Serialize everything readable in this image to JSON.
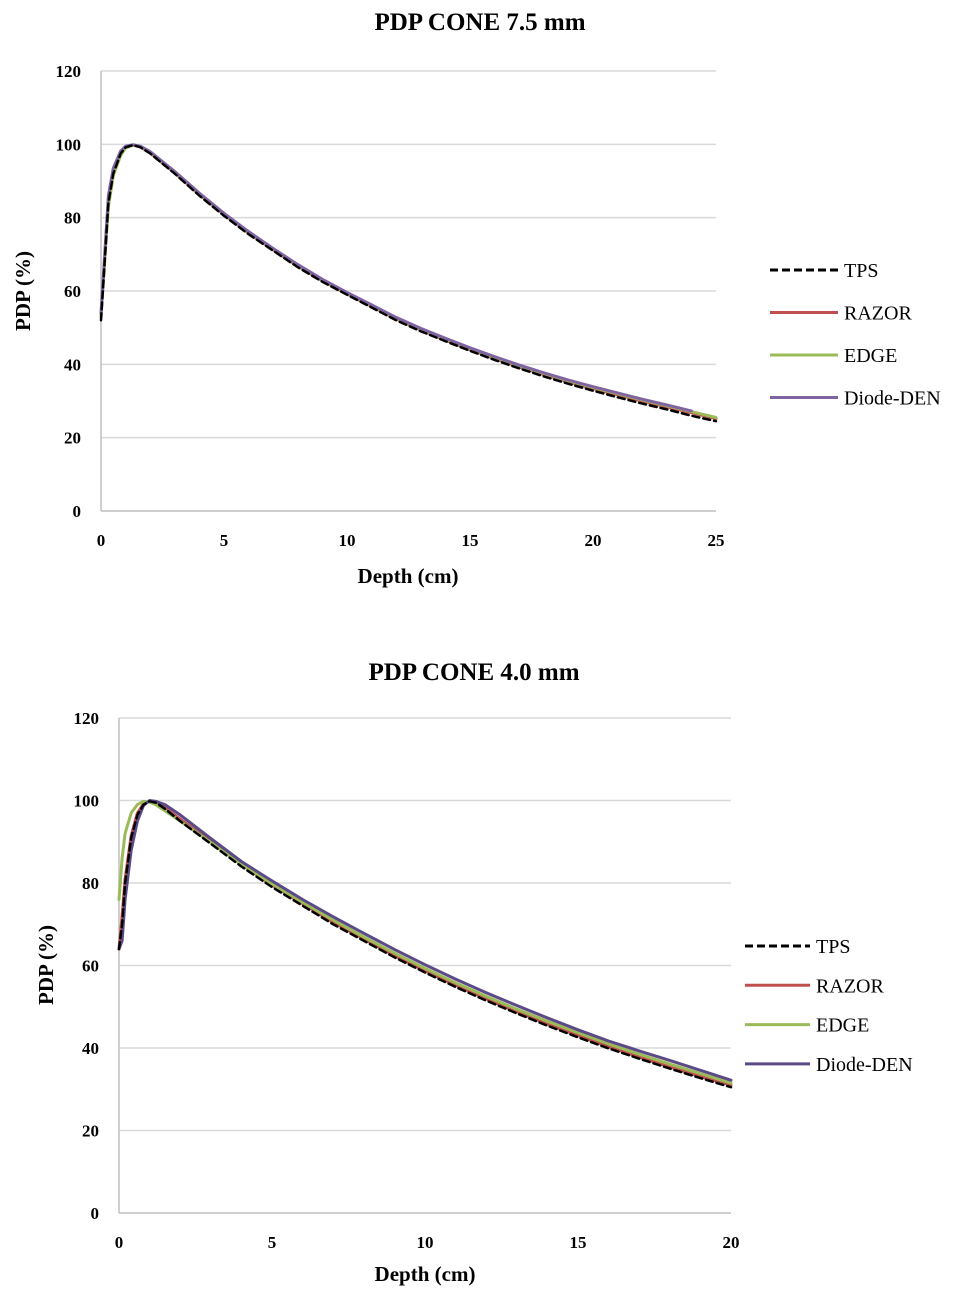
{
  "colors": {
    "TPS": "#000000",
    "RAZOR": "#c0504d",
    "EDGE": "#9bbb59",
    "Diode-DEN": "#8064a2",
    "Diode-DEN_dark": "#5b4a87",
    "grid": "#d9d9d9",
    "axis": "#bfbfbf"
  },
  "chart_data": [
    {
      "type": "line",
      "title": "PDP CONE 7.5 mm",
      "xlabel": "Depth (cm)",
      "ylabel": "PDP (%)",
      "xlim": [
        0,
        25
      ],
      "ylim": [
        0,
        120
      ],
      "xticks": [
        0,
        5,
        10,
        15,
        20,
        25
      ],
      "yticks": [
        0,
        20,
        40,
        60,
        80,
        100,
        120
      ],
      "grid": "horizontal",
      "legend": "right",
      "series": [
        {
          "name": "TPS",
          "style": "dashed",
          "x": [
            0,
            0.3,
            0.5,
            0.8,
            1.0,
            1.3,
            1.6,
            2,
            3,
            4,
            5,
            6,
            7,
            8,
            9,
            10,
            11,
            12,
            13,
            14,
            15,
            16,
            17,
            18,
            19,
            20,
            21,
            22,
            23,
            24,
            25
          ],
          "y": [
            52,
            84,
            92,
            97.5,
            99.2,
            99.8,
            99.2,
            97.5,
            92,
            86,
            80.5,
            75.5,
            71,
            66.5,
            62.5,
            59,
            55.5,
            52,
            49,
            46.3,
            43.7,
            41.2,
            38.9,
            36.7,
            34.7,
            32.8,
            31,
            29.3,
            27.7,
            26,
            24.5
          ]
        },
        {
          "name": "RAZOR",
          "style": "solid",
          "x": [
            0,
            0.3,
            0.5,
            0.8,
            1.0,
            1.3,
            1.6,
            2,
            3,
            4,
            5,
            6,
            7,
            8,
            9,
            10,
            11,
            12,
            13,
            14,
            15,
            16,
            17,
            18,
            19,
            20,
            21,
            22,
            23,
            24,
            25
          ],
          "y": [
            53,
            85,
            93,
            98,
            99.4,
            99.8,
            99.3,
            97.6,
            92.2,
            86.3,
            80.8,
            75.8,
            71.2,
            66.8,
            62.8,
            59.2,
            55.8,
            52.4,
            49.4,
            46.6,
            44,
            41.6,
            39.3,
            37.2,
            35.2,
            33.4,
            31.7,
            30,
            28.4,
            26.8,
            25.2
          ]
        },
        {
          "name": "EDGE",
          "style": "solid",
          "x": [
            0,
            0.3,
            0.5,
            0.8,
            1.0,
            1.3,
            1.6,
            2,
            3,
            4,
            5,
            6,
            7,
            8,
            9,
            10,
            11,
            12,
            13,
            14,
            15,
            16,
            17,
            18,
            19,
            20,
            21,
            22,
            23,
            24,
            25
          ],
          "y": [
            53,
            83,
            91.5,
            97,
            99,
            99.8,
            99.4,
            97.8,
            92.4,
            86.5,
            81,
            76,
            71.4,
            67,
            63,
            59.4,
            56,
            52.6,
            49.6,
            46.9,
            44.3,
            41.9,
            39.6,
            37.5,
            35.5,
            33.7,
            32,
            30.3,
            28.7,
            27.1,
            25.5
          ]
        },
        {
          "name": "Diode-DEN",
          "style": "solid",
          "x": [
            0,
            0.3,
            0.5,
            0.8,
            1.0,
            1.3,
            1.6,
            2,
            3,
            4,
            5,
            6,
            7,
            8,
            9,
            10,
            11,
            12,
            13,
            14,
            15,
            16,
            17,
            18,
            19,
            20,
            21,
            22,
            23,
            24
          ],
          "y": [
            54,
            86,
            93.5,
            98.2,
            99.5,
            99.9,
            99.5,
            98,
            92.6,
            86.7,
            81.2,
            76.2,
            71.6,
            67.2,
            63.2,
            59.6,
            56.2,
            52.8,
            49.8,
            47.1,
            44.5,
            42.1,
            39.8,
            37.7,
            35.7,
            33.9,
            32.2,
            30.5,
            28.9,
            27.3
          ]
        }
      ]
    },
    {
      "type": "line",
      "title": "PDP CONE  4.0 mm",
      "xlabel": "Depth (cm)",
      "ylabel": "PDP (%)",
      "xlim": [
        0,
        20
      ],
      "ylim": [
        0,
        120
      ],
      "xticks": [
        0,
        5,
        10,
        15,
        20
      ],
      "yticks": [
        0,
        20,
        40,
        60,
        80,
        100,
        120
      ],
      "grid": "horizontal",
      "legend": "right",
      "series": [
        {
          "name": "TPS",
          "style": "dashed",
          "x": [
            0,
            0.1,
            0.2,
            0.4,
            0.6,
            0.8,
            1.0,
            1.2,
            1.5,
            2,
            3,
            4,
            5,
            6,
            7,
            8,
            9,
            10,
            11,
            12,
            13,
            14,
            15,
            16,
            17,
            18,
            19,
            20
          ],
          "y": [
            64,
            70,
            80,
            91,
            96.5,
            99,
            99.8,
            99.5,
            98,
            95,
            89.5,
            84,
            79,
            74.5,
            70,
            66,
            62,
            58.3,
            54.8,
            51.5,
            48.4,
            45.4,
            42.6,
            39.9,
            37.4,
            35,
            32.7,
            30.5
          ]
        },
        {
          "name": "RAZOR",
          "style": "solid",
          "x": [
            0,
            0.1,
            0.2,
            0.4,
            0.6,
            0.8,
            1.0,
            1.2,
            1.5,
            2,
            3,
            4,
            5,
            6,
            7,
            8,
            9,
            10,
            11,
            12,
            13,
            14,
            15,
            16,
            17,
            18,
            19,
            20
          ],
          "y": [
            64,
            72,
            81,
            91.5,
            97,
            99.2,
            99.8,
            99.4,
            98.2,
            95.5,
            90,
            84.5,
            79.5,
            75,
            70.5,
            66.4,
            62.4,
            58.7,
            55.2,
            51.9,
            48.8,
            45.8,
            43,
            40.3,
            37.8,
            35.4,
            33.1,
            31
          ]
        },
        {
          "name": "EDGE",
          "style": "solid",
          "x": [
            0,
            0.1,
            0.2,
            0.4,
            0.6,
            0.8,
            1.0,
            1.2,
            1.5,
            2,
            3,
            4,
            5,
            6,
            7,
            8,
            9,
            10,
            11,
            12,
            13,
            14,
            15,
            16,
            17,
            18,
            19,
            20
          ],
          "y": [
            76,
            86,
            92,
            97,
            99,
            99.8,
            99.6,
            99,
            97.5,
            95,
            89.8,
            84.5,
            79.8,
            75.3,
            71,
            66.9,
            63,
            59.3,
            55.8,
            52.5,
            49.4,
            46.5,
            43.7,
            41,
            38.5,
            36.1,
            33.8,
            31.5
          ]
        },
        {
          "name": "Diode-DEN",
          "style": "solid",
          "x": [
            0,
            0.1,
            0.2,
            0.4,
            0.6,
            0.8,
            1.0,
            1.2,
            1.5,
            2,
            3,
            4,
            5,
            6,
            7,
            8,
            9,
            10,
            11,
            12,
            13,
            14,
            15,
            16,
            17,
            18,
            19,
            20
          ],
          "y": [
            64,
            66,
            76,
            88,
            95,
            98.8,
            100,
            99.8,
            99,
            96.5,
            90.8,
            85.2,
            80.5,
            76,
            71.8,
            67.8,
            63.9,
            60.2,
            56.7,
            53.4,
            50.3,
            47.3,
            44.4,
            41.7,
            39.3,
            37,
            34.6,
            32.2
          ]
        }
      ]
    }
  ]
}
